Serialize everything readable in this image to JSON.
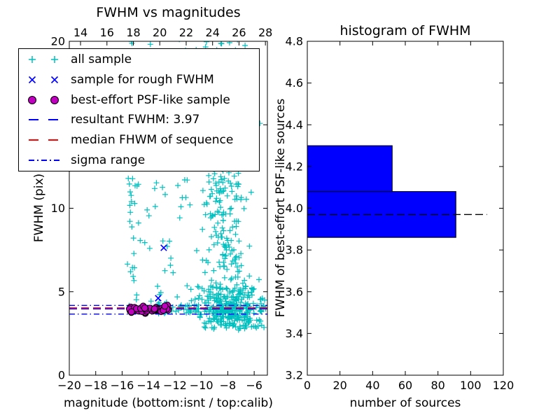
{
  "figure": {
    "bg": "#ffffff"
  },
  "colors": {
    "all_sample": "#00BFBF",
    "rough_sample": "#0000FF",
    "psf_sample": "#BF00BF",
    "psf_edge": "#000000",
    "resultant_line": "#0000FF",
    "median_line": "#FF0000",
    "sigma_line": "#0000FF",
    "hist_bar_fill": "#0000FF",
    "hist_bar_edge": "#000000",
    "hist_median_line": "#000000",
    "axes": "#000000"
  },
  "legend": {
    "entries": [
      {
        "label": "all sample",
        "marker": "plus",
        "color": "#00BFBF"
      },
      {
        "label": "sample for rough FWHM",
        "marker": "x",
        "color": "#0000FF"
      },
      {
        "label": "best-effort PSF-like sample",
        "marker": "circle",
        "color": "#BF00BF",
        "edge": "#000000"
      },
      {
        "label": "resultant FWHM: 3.97",
        "marker": "dashed",
        "color": "#0000FF"
      },
      {
        "label": "median FHWM of sequence",
        "marker": "dashed",
        "color": "#FF0000"
      },
      {
        "label": "sigma range",
        "marker": "dashdot",
        "color": "#0000FF"
      }
    ]
  },
  "chart_data": [
    {
      "type": "scatter",
      "title": "FWHM vs magnitudes",
      "xlabel": "magnitude (bottom:isnt / top:calib)",
      "ylabel": "FWHM (pix)",
      "xlim": [
        -20,
        -5
      ],
      "ylim": [
        0,
        20
      ],
      "xticks": [
        -20,
        -18,
        -16,
        -14,
        -12,
        -10,
        -8,
        -6
      ],
      "xtick_labels": [
        "−20",
        "−18",
        "−16",
        "−14",
        "−12",
        "−10",
        "−8",
        "−6"
      ],
      "yticks": [
        0,
        5,
        10,
        15,
        20
      ],
      "ytick_labels": [
        "0",
        "5",
        "10",
        "15",
        "20"
      ],
      "top_axis": {
        "lim": [
          13.15,
          28.15
        ],
        "ticks": [
          14,
          16,
          18,
          20,
          22,
          24,
          26,
          28
        ],
        "tick_labels": [
          "14",
          "16",
          "18",
          "20",
          "22",
          "24",
          "26",
          "28"
        ]
      },
      "grid": false,
      "legend_position": "upper left",
      "seed": 7,
      "series": [
        {
          "name": "all sample",
          "marker": "plus",
          "color": "#00BFBF",
          "clusters": [
            {
              "n": 300,
              "x": {
                "d": "g",
                "mu": -7.8,
                "s": 1.15,
                "min": -11.5,
                "max": -5.1
              },
              "y": {
                "d": "g",
                "mu": 4.15,
                "s": 0.85,
                "min": 2.75,
                "max": 6.5
              }
            },
            {
              "n": 170,
              "x": {
                "d": "g",
                "mu": -8.3,
                "s": 0.8,
                "min": -11.0,
                "max": -5.1
              },
              "y": {
                "d": "u",
                "min": 6.5,
                "max": 14.0
              }
            },
            {
              "n": 110,
              "x": {
                "d": "g",
                "mu": -8.7,
                "s": 1.3,
                "min": -12.0,
                "max": -5.1
              },
              "y": {
                "d": "u",
                "min": 14.0,
                "max": 20.2
              }
            },
            {
              "n": 85,
              "x": {
                "d": "u",
                "min": -13.3,
                "max": -5.1
              },
              "y": {
                "d": "g",
                "mu": 3.98,
                "s": 0.17,
                "min": 3.3,
                "max": 4.7
              }
            },
            {
              "n": 55,
              "x": {
                "d": "g",
                "mu": -15.1,
                "s": 0.2,
                "min": -15.6,
                "max": -14.5
              },
              "y": {
                "d": "u",
                "min": 3.7,
                "max": 20.2
              }
            },
            {
              "n": 55,
              "x": {
                "d": "u",
                "min": -14.8,
                "max": -10.6
              },
              "y": {
                "d": "u",
                "min": 4.3,
                "max": 20.2
              }
            },
            {
              "n": 35,
              "x": {
                "d": "u",
                "min": -9.8,
                "max": -5.2
              },
              "y": {
                "d": "u",
                "min": 2.7,
                "max": 3.5
              }
            }
          ]
        },
        {
          "name": "sample for rough FWHM",
          "marker": "x",
          "color": "#0000FF",
          "points": [
            [
              -12.85,
              7.63
            ],
            [
              -13.27,
              4.61
            ]
          ]
        },
        {
          "name": "best-effort PSF-like sample",
          "marker": "circle",
          "color": "#BF00BF",
          "edge": "#000000",
          "clusters": [
            {
              "n": 48,
              "x": {
                "d": "u",
                "min": -15.5,
                "max": -12.5
              },
              "y": {
                "d": "g",
                "mu": 3.95,
                "s": 0.11,
                "min": 3.7,
                "max": 4.23
              }
            }
          ]
        }
      ],
      "hlines": [
        {
          "name": "resultant FWHM",
          "value": 3.97,
          "color": "#0000FF",
          "style": "dashed"
        },
        {
          "name": "median FHWM of sequence",
          "value": 4.03,
          "color": "#FF0000",
          "style": "dashed"
        },
        {
          "name": "sigma range high",
          "value": 4.18,
          "color": "#0000FF",
          "style": "dashdot"
        },
        {
          "name": "sigma range low",
          "value": 3.66,
          "color": "#0000FF",
          "style": "dashdot"
        }
      ]
    },
    {
      "type": "bar",
      "orientation": "horizontal",
      "title": "histogram of FWHM",
      "xlabel": "number of sources",
      "ylabel": "FWHM of best-effort PSF-like sources",
      "xlim": [
        0,
        120
      ],
      "ylim": [
        3.2,
        4.8
      ],
      "xticks": [
        0,
        20,
        40,
        60,
        80,
        100,
        120
      ],
      "xtick_labels": [
        "0",
        "20",
        "40",
        "60",
        "80",
        "100",
        "120"
      ],
      "yticks": [
        3.2,
        3.4,
        3.6,
        3.8,
        4.0,
        4.2,
        4.4,
        4.6,
        4.8
      ],
      "ytick_labels": [
        "3.2",
        "3.4",
        "3.6",
        "3.8",
        "4.0",
        "4.2",
        "4.4",
        "4.6",
        "4.8"
      ],
      "grid": false,
      "bars": [
        {
          "from": 3.86,
          "to": 4.08,
          "count": 91
        },
        {
          "from": 4.08,
          "to": 4.3,
          "count": 52
        }
      ],
      "bar_fill": "#0000FF",
      "bar_edge": "#000000",
      "median_line": {
        "value": 3.97,
        "x_extent": [
          0,
          110
        ],
        "color": "#000000",
        "style": "dashed"
      }
    }
  ]
}
